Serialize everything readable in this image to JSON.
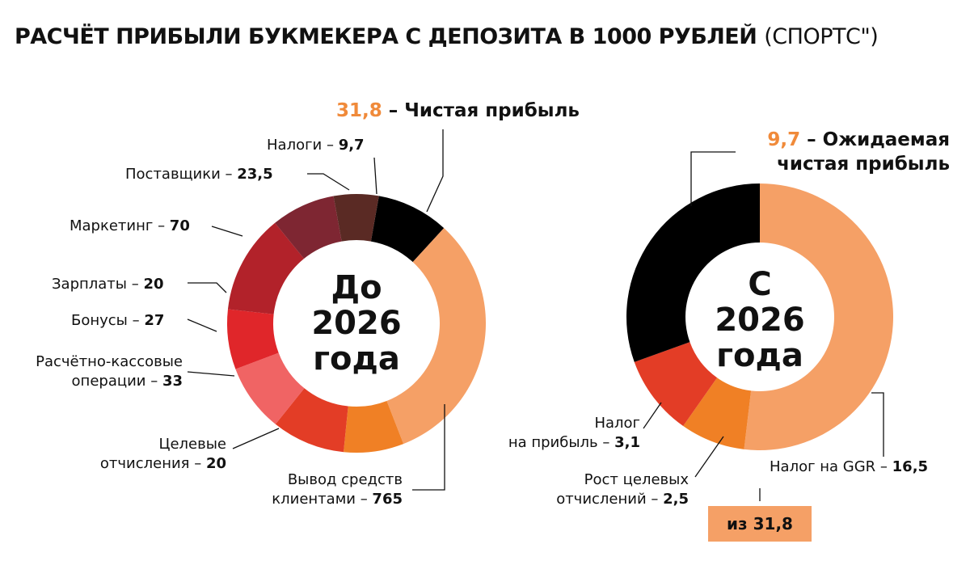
{
  "title": {
    "main": "РАСЧЁТ ПРИБЫЛИ БУКМЕКЕРА С ДЕПОЗИТА В 1000 РУБЛЕЙ",
    "source": "(СПОРТС\")"
  },
  "chart_data": [
    {
      "type": "pie",
      "donut": true,
      "center_label": [
        "До",
        "2026",
        "года"
      ],
      "slices": [
        {
          "label": "Чистая прибыль",
          "value": 31.8,
          "color": "#000000"
        },
        {
          "label": "Вывод средств клиентами",
          "value": 765,
          "color": "#F5A066"
        },
        {
          "label": "Целевые отчисления",
          "value": 20,
          "color": "#F08025"
        },
        {
          "label": "Расчётно-кассовые операции",
          "value": 33,
          "color": "#E33D26"
        },
        {
          "label": "Бонусы",
          "value": 27,
          "color": "#F06464"
        },
        {
          "label": "Зарплаты",
          "value": 20,
          "color": "#E0262A"
        },
        {
          "label": "Маркетинг",
          "value": 70,
          "color": "#B2222A"
        },
        {
          "label": "Поставщики",
          "value": 23.5,
          "color": "#7E2632"
        },
        {
          "label": "Налоги",
          "value": 9.7,
          "color": "#5A2A24"
        }
      ]
    },
    {
      "type": "pie",
      "donut": true,
      "center_label": [
        "С",
        "2026",
        "года"
      ],
      "slices": [
        {
          "label": "Налог на GGR",
          "value": 16.5,
          "color": "#F5A066"
        },
        {
          "label": "Рост целевых отчислений",
          "value": 2.5,
          "color": "#F08025"
        },
        {
          "label": "Налог на прибыль",
          "value": 3.1,
          "color": "#E33D26"
        },
        {
          "label": "Ожидаемая чистая прибыль",
          "value": 9.7,
          "color": "#000000"
        }
      ]
    }
  ],
  "labels": {
    "left": {
      "profit_value": "31,8",
      "profit_text": "– Чистая прибыль",
      "taxes": "Налоги – ",
      "taxes_v": "9,7",
      "suppliers": "Поставщики – ",
      "suppliers_v": "23,5",
      "marketing": "Маркетинг – ",
      "marketing_v": "70",
      "salaries": "Зарплаты – ",
      "salaries_v": "20",
      "bonuses": "Бонусы – ",
      "bonuses_v": "27",
      "cash_1": "Расчётно-кассовые",
      "cash_2": "операции – ",
      "cash_v": "33",
      "target_1": "Целевые",
      "target_2": "отчисления – ",
      "target_v": "20",
      "withdraw_1": "Вывод средств",
      "withdraw_2": "клиентами – ",
      "withdraw_v": "765"
    },
    "right": {
      "profit_value": "9,7",
      "profit_text_1": "– Ожидаемая",
      "profit_text_2": "чистая прибыль",
      "ptax_1": "Налог",
      "ptax_2": "на прибыль – ",
      "ptax_v": "3,1",
      "growth_1": "Рост целевых",
      "growth_2": "отчислений – ",
      "growth_v": "2,5",
      "ggr": "Налог на GGR – ",
      "ggr_v": "16,5",
      "from": "из 31,8"
    }
  }
}
